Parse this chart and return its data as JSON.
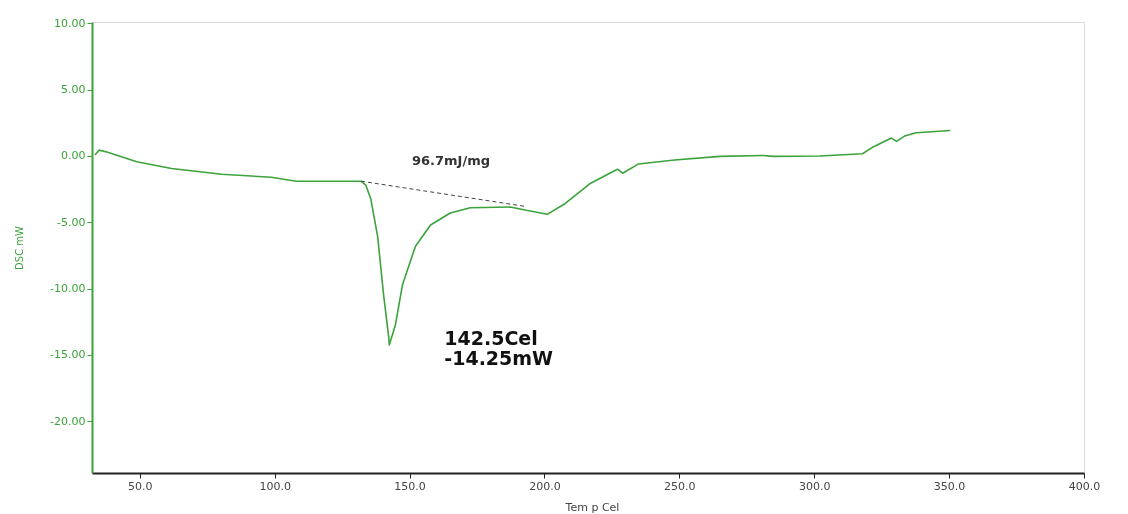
{
  "chart_data": {
    "type": "line",
    "xlabel": "Tem p Cel",
    "ylabel": "DSC mW",
    "xlim": [
      32.3,
      400
    ],
    "ylim": [
      -23.9,
      10.1
    ],
    "xticks": [
      {
        "value": 50,
        "label": "50.0"
      },
      {
        "value": 100,
        "label": "100.0"
      },
      {
        "value": 150,
        "label": "150.0"
      },
      {
        "value": 200,
        "label": "200.0"
      },
      {
        "value": 250,
        "label": "250.0"
      },
      {
        "value": 300,
        "label": "300.0"
      },
      {
        "value": 350,
        "label": "350.0"
      },
      {
        "value": 400,
        "label": "400.0"
      }
    ],
    "yticks": [
      {
        "value": 10,
        "label": "10.00"
      },
      {
        "value": 5,
        "label": "5.00"
      },
      {
        "value": 0,
        "label": "0.00"
      },
      {
        "value": -5,
        "label": "-5.00"
      },
      {
        "value": -10,
        "label": "-10.00"
      },
      {
        "value": -15,
        "label": "-15.00"
      },
      {
        "value": -20,
        "label": "-20.00"
      }
    ],
    "grid": false,
    "series": [
      {
        "color": "#3ba33b",
        "line_style": "solid",
        "x": [
          33.4,
          34.9,
          37.8,
          48.9,
          61.8,
          80.3,
          98.7,
          108,
          132,
          133.8,
          135.6,
          138.2,
          140.4,
          142.3,
          142.5,
          144.8,
          147.4,
          152.2,
          157.8,
          165.1,
          172.5,
          187.3,
          194.7,
          201,
          207.6,
          216.8,
          224.2,
          227.1,
          229,
          234.9,
          248.2,
          265.1,
          281,
          285,
          302,
          317.9,
          322,
          328.6,
          330.5,
          333.8,
          337.8,
          350.4
        ],
        "values": [
          0.07,
          0.44,
          0.3,
          -0.44,
          -0.95,
          -1.38,
          -1.6,
          -1.9,
          -1.9,
          -2.2,
          -3.2,
          -6.1,
          -10.5,
          -13.7,
          -14.25,
          -12.7,
          -9.7,
          -6.8,
          -5.2,
          -4.3,
          -3.9,
          -3.85,
          -4.15,
          -4.4,
          -3.6,
          -2.1,
          -1.3,
          -1.0,
          -1.3,
          -0.6,
          -0.3,
          -0.03,
          0.04,
          -0.03,
          0,
          0.17,
          0.7,
          1.35,
          1.1,
          1.53,
          1.75,
          1.92
        ]
      },
      {
        "type": "line",
        "color": "#444444",
        "line_style": "dashed",
        "x": [
          132,
          192.8
        ],
        "values": [
          -1.9,
          -3.8
        ]
      }
    ],
    "annotations": [
      "96.7mJ/mg",
      {
        "text": "142.5Cel\n-14.25mW",
        "x": 142.5,
        "y": -14.25
      }
    ]
  }
}
